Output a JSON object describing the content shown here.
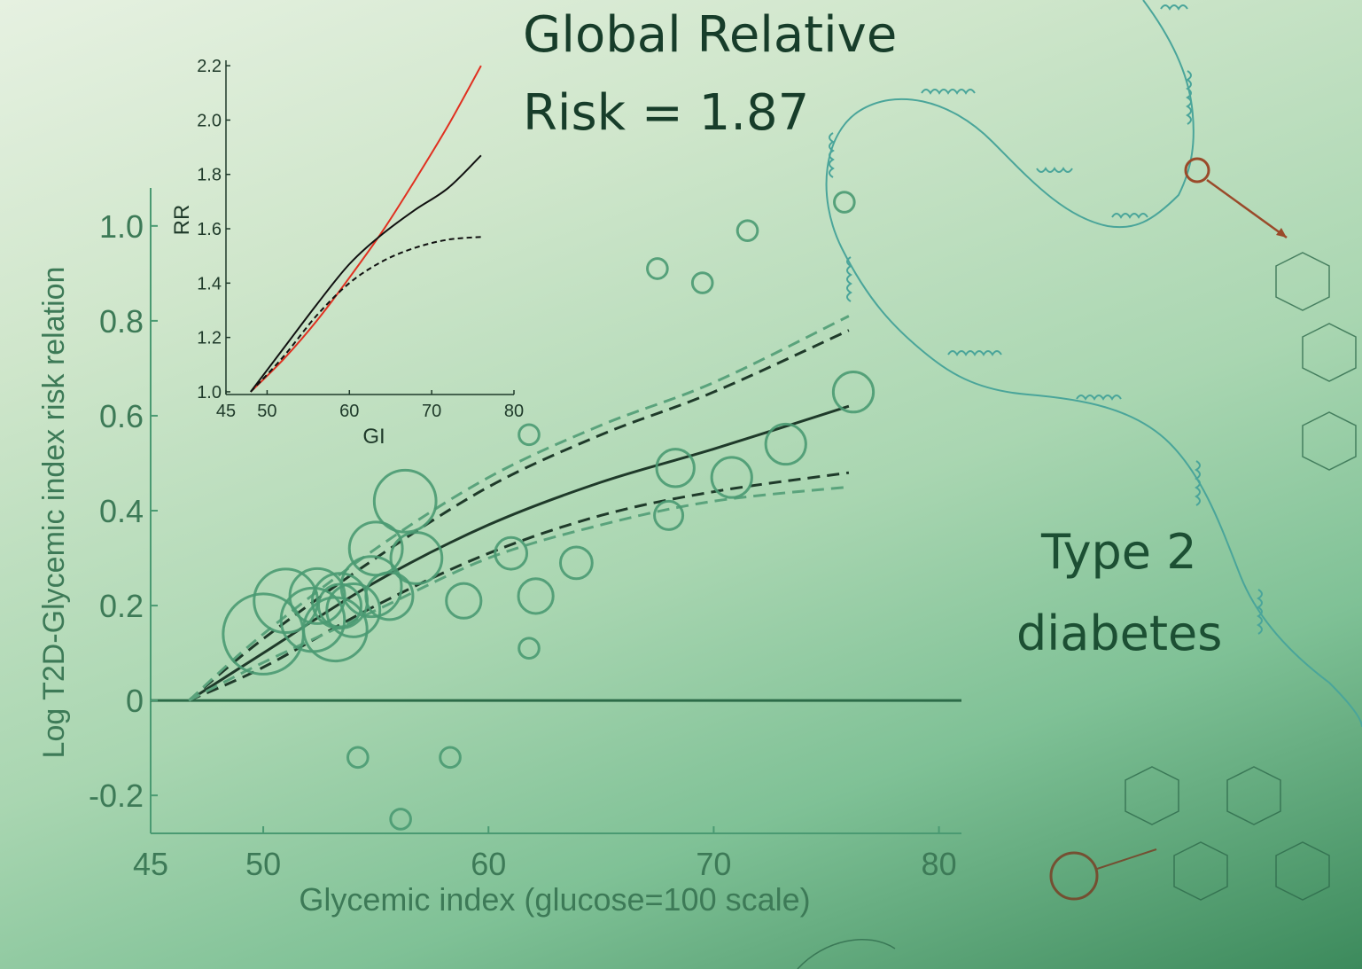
{
  "headline": {
    "line1": "Global Relative",
    "line2": "Risk = 1.87"
  },
  "side_label": {
    "line1": "Type 2",
    "line2": "diabetes"
  },
  "colors": {
    "accent": "#4a9a72",
    "dark": "#1f3a2a",
    "red": "#e03020",
    "text": "#3d7a57"
  },
  "chart_data": [
    {
      "type": "scatter",
      "xlabel": "Glycemic index  (glucose=100 scale)",
      "ylabel": "Log T2D-Glycemic index risk relation",
      "xlim": [
        45,
        81
      ],
      "ylim": [
        -0.28,
        1.08
      ],
      "x_ticks": [
        "45",
        "50",
        "60",
        "70",
        "80"
      ],
      "y_ticks": [
        "1.0",
        "0.8",
        "0.6",
        "0.4",
        "0.2",
        "0",
        "-0.2"
      ],
      "grid": false,
      "points": [
        {
          "x": 50.0,
          "y": 0.14,
          "w": 32
        },
        {
          "x": 51.0,
          "y": 0.21,
          "w": 20
        },
        {
          "x": 52.2,
          "y": 0.17,
          "w": 20
        },
        {
          "x": 52.4,
          "y": 0.22,
          "w": 15
        },
        {
          "x": 53.2,
          "y": 0.15,
          "w": 20
        },
        {
          "x": 53.4,
          "y": 0.21,
          "w": 15
        },
        {
          "x": 53.4,
          "y": 0.2,
          "w": 9
        },
        {
          "x": 54.0,
          "y": 0.19,
          "w": 14
        },
        {
          "x": 54.8,
          "y": 0.24,
          "w": 18
        },
        {
          "x": 55.0,
          "y": 0.32,
          "w": 14
        },
        {
          "x": 55.6,
          "y": 0.22,
          "w": 11
        },
        {
          "x": 56.3,
          "y": 0.42,
          "w": 19
        },
        {
          "x": 56.8,
          "y": 0.3,
          "w": 13
        },
        {
          "x": 58.9,
          "y": 0.21,
          "w": 6
        },
        {
          "x": 61.0,
          "y": 0.31,
          "w": 5
        },
        {
          "x": 62.1,
          "y": 0.22,
          "w": 6
        },
        {
          "x": 63.9,
          "y": 0.29,
          "w": 5
        },
        {
          "x": 61.8,
          "y": 0.56,
          "w": 2
        },
        {
          "x": 61.8,
          "y": 0.11,
          "w": 2
        },
        {
          "x": 67.5,
          "y": 0.91,
          "w": 2
        },
        {
          "x": 69.5,
          "y": 0.88,
          "w": 2
        },
        {
          "x": 71.5,
          "y": 0.99,
          "w": 2
        },
        {
          "x": 68.0,
          "y": 0.39,
          "w": 4
        },
        {
          "x": 68.3,
          "y": 0.49,
          "w": 7
        },
        {
          "x": 70.8,
          "y": 0.47,
          "w": 8
        },
        {
          "x": 73.2,
          "y": 0.54,
          "w": 8
        },
        {
          "x": 76.2,
          "y": 0.65,
          "w": 8
        },
        {
          "x": 75.8,
          "y": 1.05,
          "w": 2
        },
        {
          "x": 54.2,
          "y": -0.12,
          "w": 2
        },
        {
          "x": 58.3,
          "y": -0.12,
          "w": 2
        },
        {
          "x": 56.1,
          "y": -0.25,
          "w": 2
        }
      ],
      "series": [
        {
          "style": "solid",
          "values": [
            [
              46.7,
              0
            ],
            [
              50,
              0.1
            ],
            [
              55,
              0.25
            ],
            [
              60,
              0.37
            ],
            [
              65,
              0.46
            ],
            [
              70,
              0.53
            ],
            [
              76,
              0.62
            ]
          ]
        },
        {
          "style": "dashed-dark",
          "values": [
            [
              46.7,
              0
            ],
            [
              50,
              0.13
            ],
            [
              55,
              0.3
            ],
            [
              60,
              0.45
            ],
            [
              65,
              0.56
            ],
            [
              70,
              0.65
            ],
            [
              76,
              0.78
            ]
          ]
        },
        {
          "style": "dashed-dark",
          "values": [
            [
              46.7,
              0
            ],
            [
              50,
              0.07
            ],
            [
              55,
              0.2
            ],
            [
              60,
              0.31
            ],
            [
              65,
              0.39
            ],
            [
              70,
              0.44
            ],
            [
              76,
              0.48
            ]
          ]
        },
        {
          "style": "dashed-green",
          "values": [
            [
              46.7,
              0
            ],
            [
              50,
              0.14
            ],
            [
              55,
              0.32
            ],
            [
              60,
              0.47
            ],
            [
              65,
              0.58
            ],
            [
              70,
              0.67
            ],
            [
              76,
              0.81
            ]
          ]
        },
        {
          "style": "dashed-green",
          "values": [
            [
              46.7,
              0
            ],
            [
              50,
              0.08
            ],
            [
              55,
              0.19
            ],
            [
              60,
              0.3
            ],
            [
              65,
              0.37
            ],
            [
              70,
              0.42
            ],
            [
              76,
              0.45
            ]
          ]
        }
      ]
    },
    {
      "type": "line",
      "xlabel": "GI",
      "ylabel": "RR",
      "xlim": [
        45,
        80
      ],
      "ylim": [
        0.99,
        2.22
      ],
      "x_ticks": [
        "45",
        "50",
        "60",
        "70",
        "80"
      ],
      "y_ticks": [
        "2.2",
        "2.0",
        "1.8",
        "1.6",
        "1.4",
        "1.2",
        "1.0"
      ],
      "series": [
        {
          "style": "red",
          "values": [
            [
              48,
              1.0
            ],
            [
              52,
              1.12
            ],
            [
              56,
              1.26
            ],
            [
              60,
              1.42
            ],
            [
              64,
              1.59
            ],
            [
              68,
              1.78
            ],
            [
              72,
              1.98
            ],
            [
              76,
              2.2
            ]
          ]
        },
        {
          "style": "black",
          "values": [
            [
              48,
              1.0
            ],
            [
              52,
              1.16
            ],
            [
              56,
              1.32
            ],
            [
              60,
              1.47
            ],
            [
              64,
              1.58
            ],
            [
              68,
              1.67
            ],
            [
              72,
              1.75
            ],
            [
              76,
              1.87
            ]
          ]
        },
        {
          "style": "dashed",
          "values": [
            [
              48,
              1.0
            ],
            [
              52,
              1.13
            ],
            [
              56,
              1.28
            ],
            [
              60,
              1.4
            ],
            [
              64,
              1.48
            ],
            [
              68,
              1.53
            ],
            [
              72,
              1.56
            ],
            [
              76,
              1.57
            ]
          ]
        }
      ]
    }
  ]
}
